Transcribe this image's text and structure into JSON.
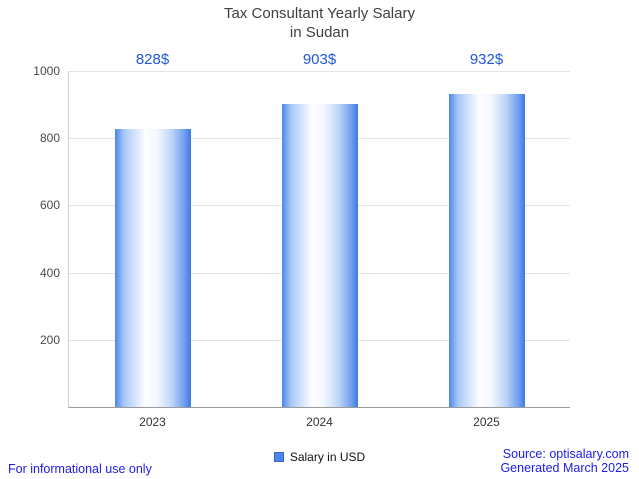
{
  "page": {
    "footer_left": "For informational use only",
    "source_line": "Source: optisalary.com",
    "generated_line": "Generated March 2025"
  },
  "colors": {
    "accent_text": "#2257d8",
    "footer_text": "#1c1ce8",
    "bar_blue": "#4a86ec",
    "grid": "#e4e4e4"
  },
  "chart_data": {
    "type": "bar",
    "title": "Tax Consultant Yearly Salary in Sudan",
    "title_line1": "Tax Consultant Yearly Salary",
    "title_line2": "in Sudan",
    "categories": [
      "2023",
      "2024",
      "2025"
    ],
    "values": [
      828,
      903,
      932
    ],
    "value_labels": [
      "828$",
      "903$",
      "932$"
    ],
    "series_name": "Salary in USD",
    "legend": [
      "Salary in USD"
    ],
    "xlabel": "",
    "ylabel": "",
    "ylim": [
      0,
      1000
    ],
    "yticks": [
      200,
      400,
      600,
      800,
      1000
    ],
    "ytick_labels": [
      "200",
      "400",
      "600",
      "800",
      "1000"
    ],
    "grid": "on",
    "legend_position": "bottom"
  }
}
